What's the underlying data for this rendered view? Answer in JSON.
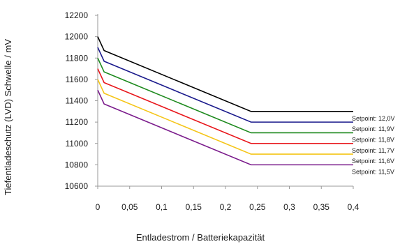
{
  "chart_data": {
    "type": "line",
    "xlabel": "Entladestrom / Batteriekapazität",
    "ylabel": "Tiefentladeschutz (LVD) Schwelle / mV",
    "xlim": [
      0,
      0.4
    ],
    "ylim": [
      10600,
      12200
    ],
    "x_ticks": [
      0,
      0.05,
      0.1,
      0.15,
      0.2,
      0.25,
      0.3,
      0.35,
      0.4
    ],
    "x_tick_labels": [
      "0",
      "0,05",
      "0,1",
      "0,15",
      "0,2",
      "0,25",
      "0,3",
      "0,35",
      "0,4"
    ],
    "y_ticks": [
      10600,
      10800,
      11000,
      11200,
      11400,
      11600,
      11800,
      12000,
      12200
    ],
    "y_tick_labels": [
      "10600",
      "10800",
      "11000",
      "11200",
      "11400",
      "11600",
      "11800",
      "12000",
      "12200"
    ],
    "grid": false,
    "legend": "series labels printed at right end of each line",
    "series": [
      {
        "name": "Setpoint: 12,0V",
        "color": "#000000",
        "points": [
          [
            0.0,
            12000
          ],
          [
            0.01,
            11870
          ],
          [
            0.24,
            11300
          ],
          [
            0.4,
            11300
          ]
        ]
      },
      {
        "name": "Setpoint: 11,9V",
        "color": "#1a1a8c",
        "points": [
          [
            0.0,
            11900
          ],
          [
            0.01,
            11770
          ],
          [
            0.24,
            11200
          ],
          [
            0.4,
            11200
          ]
        ]
      },
      {
        "name": "Setpoint: 11,8V",
        "color": "#1e8a1e",
        "points": [
          [
            0.0,
            11800
          ],
          [
            0.01,
            11670
          ],
          [
            0.24,
            11100
          ],
          [
            0.4,
            11100
          ]
        ]
      },
      {
        "name": "Setpoint: 11,7V",
        "color": "#e8161b",
        "points": [
          [
            0.0,
            11700
          ],
          [
            0.01,
            11570
          ],
          [
            0.24,
            11000
          ],
          [
            0.4,
            11000
          ]
        ]
      },
      {
        "name": "Setpoint: 11,6V",
        "color": "#f5c518",
        "points": [
          [
            0.0,
            11600
          ],
          [
            0.01,
            11470
          ],
          [
            0.24,
            10900
          ],
          [
            0.4,
            10900
          ]
        ]
      },
      {
        "name": "Setpoint: 11,5V",
        "color": "#7b1c8c",
        "points": [
          [
            0.0,
            11500
          ],
          [
            0.01,
            11370
          ],
          [
            0.24,
            10800
          ],
          [
            0.4,
            10800
          ]
        ]
      }
    ]
  }
}
